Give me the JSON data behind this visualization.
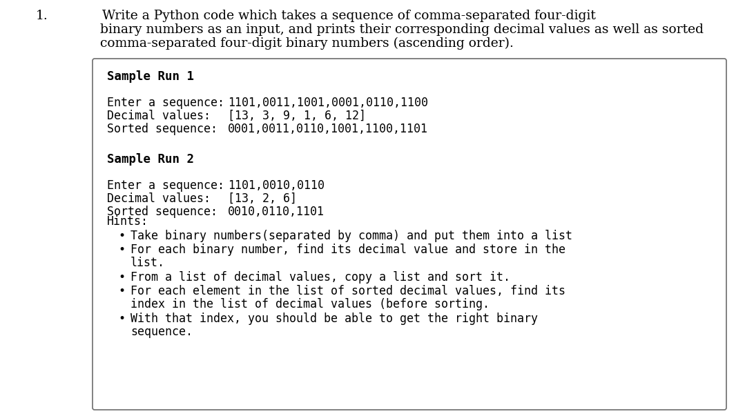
{
  "bg_color": "#ffffff",
  "text_color": "#000000",
  "question_number": "1.",
  "question_text_line1": "Write a Python code which takes a sequence of comma-separated four-digit",
  "question_text_line2": "binary numbers as an input, and prints their corresponding decimal values as well as sorted",
  "question_text_line3": "comma-separated four-digit binary numbers (ascending order).",
  "box_title1": "Sample Run 1",
  "box_line1_label": "Enter a sequence: ",
  "box_line1_value": "1101,0011,1001,0001,0110,1100",
  "box_line2_label": "Decimal values:   ",
  "box_line2_value": "[13, 3, 9, 1, 6, 12]",
  "box_line3_label": "Sorted sequence:  ",
  "box_line3_value": "0001,0011,0110,1001,1100,1101",
  "box_title2": "Sample Run 2",
  "box2_line1_label": "Enter a sequence: ",
  "box2_line1_value": "1101,0010,0110",
  "box2_line2_label": "Decimal values:   ",
  "box2_line2_value": "[13, 2, 6]",
  "box2_line3_label": "Sorted sequence:  ",
  "box2_line3_value": "0010,0110,1101",
  "hints_title": "Hints:",
  "hint1": "Take binary numbers(separated by comma) and put them into a list",
  "hint2a": "For each binary number, find its decimal value and store in the",
  "hint2b": "list.",
  "hint3": "From a list of decimal values, copy a list and sort it.",
  "hint4a": "For each element in the list of sorted decimal values, find its",
  "hint4b": "index in the list of decimal values (before sorting.",
  "hint5a": "With that index, you should be able to get the right binary",
  "hint5b": "sequence.",
  "mono_font": "DejaVu Sans Mono",
  "serif_font": "DejaVu Serif",
  "box_edge_color": "#777777",
  "box_face_color": "#ffffff",
  "fig_width": 10.79,
  "fig_height": 6.03,
  "dpi": 100
}
